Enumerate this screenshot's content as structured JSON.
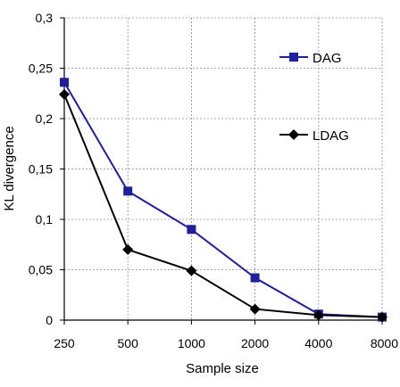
{
  "chart_data": {
    "type": "line",
    "categories": [
      "250",
      "500",
      "1000",
      "2000",
      "4000",
      "8000"
    ],
    "xlabel": "Sample size",
    "ylabel": "KL divergence",
    "ylim": [
      0,
      0.3
    ],
    "yticks": [
      0,
      0.05,
      0.1,
      0.15,
      0.2,
      0.25,
      0.3
    ],
    "ytick_labels": [
      "0",
      "0,05",
      "0,1",
      "0,15",
      "0,2",
      "0,25",
      "0,3"
    ],
    "grid": true,
    "legend_position": "right",
    "series": [
      {
        "name": "DAG",
        "values": [
          0.236,
          0.128,
          0.09,
          0.042,
          0.006,
          0.003
        ],
        "color": "#1f1f9e",
        "marker": "square"
      },
      {
        "name": "LDAG",
        "values": [
          0.224,
          0.07,
          0.049,
          0.011,
          0.005,
          0.003
        ],
        "color": "#000000",
        "marker": "diamond"
      }
    ]
  }
}
